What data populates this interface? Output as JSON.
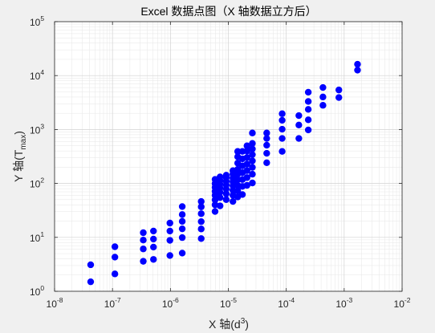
{
  "chart_data": {
    "type": "scatter",
    "title": "Excel 数据点图（X 轴数据立方后）",
    "xlabel": {
      "main": "X 轴(d",
      "sup": "3",
      "close": ")"
    },
    "ylabel": {
      "main": "Y 轴(T",
      "sub": "max",
      "close": ")"
    },
    "xscale": "log",
    "yscale": "log",
    "xlim": [
      1e-08,
      0.01
    ],
    "ylim": [
      1,
      100000
    ],
    "x_ticks": [
      {
        "base": "10",
        "exp": "-8"
      },
      {
        "base": "10",
        "exp": "-7"
      },
      {
        "base": "10",
        "exp": "-6"
      },
      {
        "base": "10",
        "exp": "-5"
      },
      {
        "base": "10",
        "exp": "-4"
      },
      {
        "base": "10",
        "exp": "-3"
      },
      {
        "base": "10",
        "exp": "-2"
      }
    ],
    "y_ticks": [
      {
        "base": "10",
        "exp": "0"
      },
      {
        "base": "10",
        "exp": "1"
      },
      {
        "base": "10",
        "exp": "2"
      },
      {
        "base": "10",
        "exp": "3"
      },
      {
        "base": "10",
        "exp": "4"
      },
      {
        "base": "10",
        "exp": "5"
      }
    ],
    "grid": true,
    "minor_grid": true,
    "marker_color": "#0000ff",
    "background_color": "#f0f0f0",
    "axes_color": "#ffffff",
    "points": [
      [
        4.2e-08,
        1.5
      ],
      [
        4.2e-08,
        3.1
      ],
      [
        1.1e-07,
        2.1
      ],
      [
        1.1e-07,
        4.3
      ],
      [
        1.1e-07,
        6.7
      ],
      [
        3.4e-07,
        3.6
      ],
      [
        3.4e-07,
        6.1
      ],
      [
        3.4e-07,
        8.9
      ],
      [
        3.4e-07,
        12.2
      ],
      [
        5.1e-07,
        3.9
      ],
      [
        5.1e-07,
        6.6
      ],
      [
        5.1e-07,
        9.3
      ],
      [
        5.1e-07,
        13.1
      ],
      [
        9.8e-07,
        4.6
      ],
      [
        9.8e-07,
        8.8
      ],
      [
        9.8e-07,
        13.1
      ],
      [
        9.8e-07,
        18.4
      ],
      [
        1.6e-06,
        5.1
      ],
      [
        1.6e-06,
        9.9
      ],
      [
        1.6e-06,
        14.4
      ],
      [
        1.6e-06,
        19.8
      ],
      [
        1.6e-06,
        26.5
      ],
      [
        1.6e-06,
        37.2
      ],
      [
        3.4e-06,
        9.5
      ],
      [
        3.4e-06,
        14.3
      ],
      [
        3.4e-06,
        19.6
      ],
      [
        3.4e-06,
        27.5
      ],
      [
        3.4e-06,
        36.8
      ],
      [
        3.4e-06,
        46.2
      ],
      [
        5.9e-06,
        30.2
      ],
      [
        5.9e-06,
        40.1
      ],
      [
        5.9e-06,
        49.5
      ],
      [
        5.9e-06,
        60.4
      ],
      [
        5.9e-06,
        71.3
      ],
      [
        5.9e-06,
        84.2
      ],
      [
        5.9e-06,
        99.4
      ],
      [
        5.9e-06,
        118.6
      ],
      [
        7.2e-06,
        38.4
      ],
      [
        7.2e-06,
        54.6
      ],
      [
        7.2e-06,
        68.7
      ],
      [
        7.2e-06,
        82.3
      ],
      [
        7.2e-06,
        96.5
      ],
      [
        7.2e-06,
        112.8
      ],
      [
        7.2e-06,
        132.1
      ],
      [
        9.2e-06,
        50.1
      ],
      [
        9.2e-06,
        64.3
      ],
      [
        9.2e-06,
        78.6
      ],
      [
        9.2e-06,
        93.2
      ],
      [
        9.2e-06,
        109.5
      ],
      [
        9.2e-06,
        127.4
      ],
      [
        9.2e-06,
        142.2
      ],
      [
        1.2e-05,
        46.3
      ],
      [
        1.2e-05,
        60.5
      ],
      [
        1.2e-05,
        74.8
      ],
      [
        1.2e-05,
        91.2
      ],
      [
        1.2e-05,
        108.3
      ],
      [
        1.2e-05,
        126.5
      ],
      [
        1.2e-05,
        148.2
      ],
      [
        1.2e-05,
        172.4
      ],
      [
        1.45e-05,
        56.1
      ],
      [
        1.45e-05,
        73.2
      ],
      [
        1.45e-05,
        92.6
      ],
      [
        1.45e-05,
        118.1
      ],
      [
        1.45e-05,
        148.6
      ],
      [
        1.45e-05,
        182.2
      ],
      [
        1.45e-05,
        238.4
      ],
      [
        1.45e-05,
        312.6
      ],
      [
        1.45e-05,
        392.1
      ],
      [
        1.75e-05,
        62.3
      ],
      [
        1.75e-05,
        88.1
      ],
      [
        1.75e-05,
        118.2
      ],
      [
        1.75e-05,
        158.3
      ],
      [
        1.75e-05,
        212.1
      ],
      [
        1.75e-05,
        286.2
      ],
      [
        1.75e-05,
        392.3
      ],
      [
        2.1e-05,
        92.1
      ],
      [
        2.1e-05,
        128.2
      ],
      [
        2.1e-05,
        172.6
      ],
      [
        2.1e-05,
        228.3
      ],
      [
        2.1e-05,
        302.4
      ],
      [
        2.1e-05,
        398.1
      ],
      [
        2.1e-05,
        498.2
      ],
      [
        2.6e-05,
        102.1
      ],
      [
        2.6e-05,
        148.3
      ],
      [
        2.6e-05,
        198.4
      ],
      [
        2.6e-05,
        262.1
      ],
      [
        2.6e-05,
        342.5
      ],
      [
        2.6e-05,
        436.2
      ],
      [
        2.6e-05,
        552.3
      ],
      [
        2.6e-05,
        862.1
      ],
      [
        4.6e-05,
        242.1
      ],
      [
        4.6e-05,
        362.2
      ],
      [
        4.6e-05,
        512.3
      ],
      [
        4.6e-05,
        682.1
      ],
      [
        4.6e-05,
        862.2
      ],
      [
        8.5e-05,
        392.2
      ],
      [
        8.5e-05,
        682.1
      ],
      [
        8.5e-05,
        1012.3
      ],
      [
        8.5e-05,
        1482.1
      ],
      [
        8.5e-05,
        1962.2
      ],
      [
        0.000165,
        682.2
      ],
      [
        0.000165,
        1212.1
      ],
      [
        0.000165,
        1812.3
      ],
      [
        0.00024,
        982.1
      ],
      [
        0.00024,
        1512.2
      ],
      [
        0.00024,
        2362.1
      ],
      [
        0.00024,
        3312.2
      ],
      [
        0.00024,
        4912.1
      ],
      [
        0.00043,
        2812.1
      ],
      [
        0.00043,
        4012.2
      ],
      [
        0.00043,
        6012.3
      ],
      [
        0.00081,
        3912.1
      ],
      [
        0.00081,
        5412.2
      ],
      [
        0.0017,
        12612.1
      ],
      [
        0.0017,
        16212.2
      ]
    ]
  }
}
